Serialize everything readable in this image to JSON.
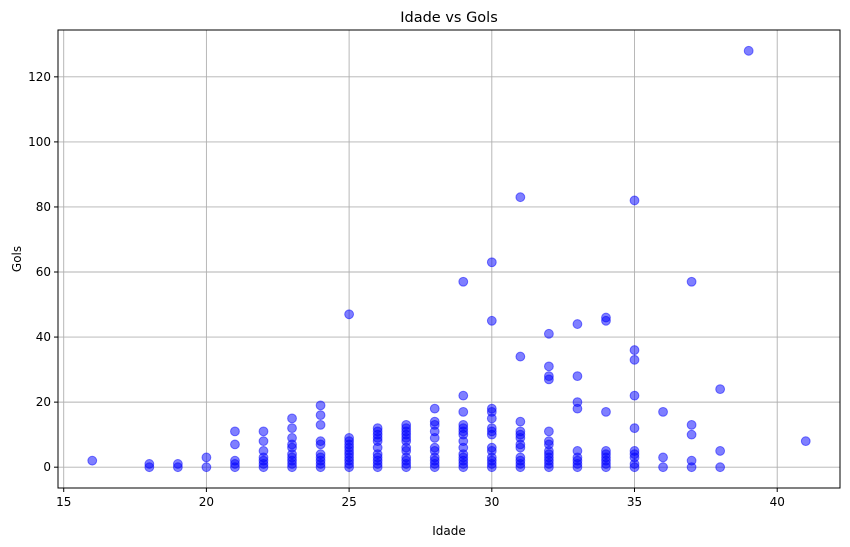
{
  "chart_data": {
    "type": "scatter",
    "title": "Idade vs Gols",
    "xlabel": "Idade",
    "ylabel": "Gols",
    "xlim": [
      14.8,
      42.2
    ],
    "ylim": [
      -6.4,
      134.4
    ],
    "xticks": [
      15,
      20,
      25,
      30,
      35,
      40
    ],
    "yticks": [
      0,
      20,
      40,
      60,
      80,
      100,
      120
    ],
    "grid": true,
    "marker_color": "#0000ff",
    "marker_alpha": 0.5,
    "points": [
      [
        16,
        2
      ],
      [
        18,
        0
      ],
      [
        18,
        1
      ],
      [
        19,
        0
      ],
      [
        19,
        1
      ],
      [
        20,
        0
      ],
      [
        20,
        3
      ],
      [
        21,
        0
      ],
      [
        21,
        1
      ],
      [
        21,
        2
      ],
      [
        21,
        7
      ],
      [
        21,
        11
      ],
      [
        22,
        0
      ],
      [
        22,
        1
      ],
      [
        22,
        2
      ],
      [
        22,
        3
      ],
      [
        22,
        5
      ],
      [
        22,
        8
      ],
      [
        22,
        11
      ],
      [
        23,
        0
      ],
      [
        23,
        1
      ],
      [
        23,
        2
      ],
      [
        23,
        3
      ],
      [
        23,
        4
      ],
      [
        23,
        6
      ],
      [
        23,
        7
      ],
      [
        23,
        9
      ],
      [
        23,
        12
      ],
      [
        23,
        15
      ],
      [
        24,
        0
      ],
      [
        24,
        1
      ],
      [
        24,
        2
      ],
      [
        24,
        3
      ],
      [
        24,
        4
      ],
      [
        24,
        7
      ],
      [
        24,
        8
      ],
      [
        24,
        13
      ],
      [
        24,
        16
      ],
      [
        24,
        19
      ],
      [
        25,
        0
      ],
      [
        25,
        1
      ],
      [
        25,
        2
      ],
      [
        25,
        3
      ],
      [
        25,
        4
      ],
      [
        25,
        5
      ],
      [
        25,
        6
      ],
      [
        25,
        7
      ],
      [
        25,
        8
      ],
      [
        25,
        9
      ],
      [
        25,
        47
      ],
      [
        26,
        0
      ],
      [
        26,
        1
      ],
      [
        26,
        2
      ],
      [
        26,
        3
      ],
      [
        26,
        4
      ],
      [
        26,
        6
      ],
      [
        26,
        8
      ],
      [
        26,
        9
      ],
      [
        26,
        10
      ],
      [
        26,
        11
      ],
      [
        26,
        12
      ],
      [
        27,
        0
      ],
      [
        27,
        1
      ],
      [
        27,
        2
      ],
      [
        27,
        3
      ],
      [
        27,
        5
      ],
      [
        27,
        6
      ],
      [
        27,
        8
      ],
      [
        27,
        9
      ],
      [
        27,
        10
      ],
      [
        27,
        11
      ],
      [
        27,
        12
      ],
      [
        27,
        13
      ],
      [
        28,
        0
      ],
      [
        28,
        1
      ],
      [
        28,
        2
      ],
      [
        28,
        3
      ],
      [
        28,
        5
      ],
      [
        28,
        6
      ],
      [
        28,
        9
      ],
      [
        28,
        11
      ],
      [
        28,
        13
      ],
      [
        28,
        14
      ],
      [
        28,
        18
      ],
      [
        29,
        0
      ],
      [
        29,
        1
      ],
      [
        29,
        2
      ],
      [
        29,
        3
      ],
      [
        29,
        4
      ],
      [
        29,
        6
      ],
      [
        29,
        8
      ],
      [
        29,
        10
      ],
      [
        29,
        11
      ],
      [
        29,
        12
      ],
      [
        29,
        13
      ],
      [
        29,
        17
      ],
      [
        29,
        22
      ],
      [
        29,
        57
      ],
      [
        30,
        0
      ],
      [
        30,
        1
      ],
      [
        30,
        2
      ],
      [
        30,
        3
      ],
      [
        30,
        5
      ],
      [
        30,
        6
      ],
      [
        30,
        10
      ],
      [
        30,
        11
      ],
      [
        30,
        12
      ],
      [
        30,
        15
      ],
      [
        30,
        17
      ],
      [
        30,
        18
      ],
      [
        30,
        45
      ],
      [
        30,
        63
      ],
      [
        31,
        0
      ],
      [
        31,
        1
      ],
      [
        31,
        2
      ],
      [
        31,
        3
      ],
      [
        31,
        6
      ],
      [
        31,
        7
      ],
      [
        31,
        9
      ],
      [
        31,
        10
      ],
      [
        31,
        11
      ],
      [
        31,
        14
      ],
      [
        31,
        34
      ],
      [
        31,
        83
      ],
      [
        32,
        0
      ],
      [
        32,
        1
      ],
      [
        32,
        2
      ],
      [
        32,
        3
      ],
      [
        32,
        4
      ],
      [
        32,
        5
      ],
      [
        32,
        7
      ],
      [
        32,
        8
      ],
      [
        32,
        11
      ],
      [
        32,
        27
      ],
      [
        32,
        28
      ],
      [
        32,
        31
      ],
      [
        32,
        41
      ],
      [
        33,
        0
      ],
      [
        33,
        1
      ],
      [
        33,
        2
      ],
      [
        33,
        3
      ],
      [
        33,
        5
      ],
      [
        33,
        18
      ],
      [
        33,
        20
      ],
      [
        33,
        28
      ],
      [
        33,
        44
      ],
      [
        34,
        0
      ],
      [
        34,
        1
      ],
      [
        34,
        2
      ],
      [
        34,
        3
      ],
      [
        34,
        4
      ],
      [
        34,
        5
      ],
      [
        34,
        17
      ],
      [
        34,
        45
      ],
      [
        34,
        46
      ],
      [
        35,
        0
      ],
      [
        35,
        1
      ],
      [
        35,
        3
      ],
      [
        35,
        4
      ],
      [
        35,
        5
      ],
      [
        35,
        12
      ],
      [
        35,
        22
      ],
      [
        35,
        33
      ],
      [
        35,
        36
      ],
      [
        35,
        82
      ],
      [
        36,
        0
      ],
      [
        36,
        3
      ],
      [
        36,
        17
      ],
      [
        37,
        0
      ],
      [
        37,
        2
      ],
      [
        37,
        10
      ],
      [
        37,
        13
      ],
      [
        37,
        57
      ],
      [
        38,
        0
      ],
      [
        38,
        5
      ],
      [
        38,
        24
      ],
      [
        39,
        128
      ],
      [
        41,
        8
      ]
    ]
  }
}
